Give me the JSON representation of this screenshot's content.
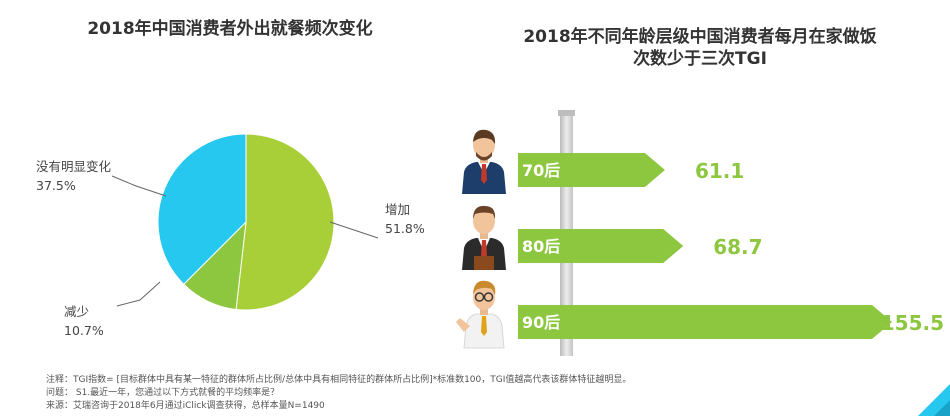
{
  "colors": {
    "increase": "#A9CF38",
    "no_change": "#27C8F0",
    "decrease": "#8DC63F",
    "bar": "#8DC63F",
    "value_text": "#8DC63F"
  },
  "chart_data": [
    {
      "type": "pie",
      "title": "2018年中国消费者外出就餐频次变化",
      "slices": [
        {
          "name": "增加",
          "value": 51.8,
          "label": "51.8%"
        },
        {
          "name": "减少",
          "value": 10.7,
          "label": "10.7%"
        },
        {
          "name": "没有明显变化",
          "value": 37.5,
          "label": "37.5%"
        }
      ]
    },
    {
      "type": "bar",
      "orientation": "horizontal",
      "title_lines": [
        "2018年不同年龄层级中国消费者每月在家做饭",
        "次数少于三次TGI"
      ],
      "categories": [
        "70后",
        "80后",
        "90后"
      ],
      "values": [
        61.1,
        68.7,
        155.5
      ],
      "value_labels": [
        "61.1",
        "68.7",
        "155.5"
      ],
      "xlim": [
        0,
        155.5
      ]
    }
  ],
  "notes": [
    "注释：TGI指数= [目标群体中具有某一特征的群体所占比例/总体中具有相同特征的群体所占比例]*标准数100，TGI值越高代表该群体特征越明显。",
    "问题：  S1.最近一年，您通过以下方式就餐的平均频率是？",
    "来源：艾瑞咨询于2018年6月通过iClick调查获得，总样本量N=1490"
  ]
}
